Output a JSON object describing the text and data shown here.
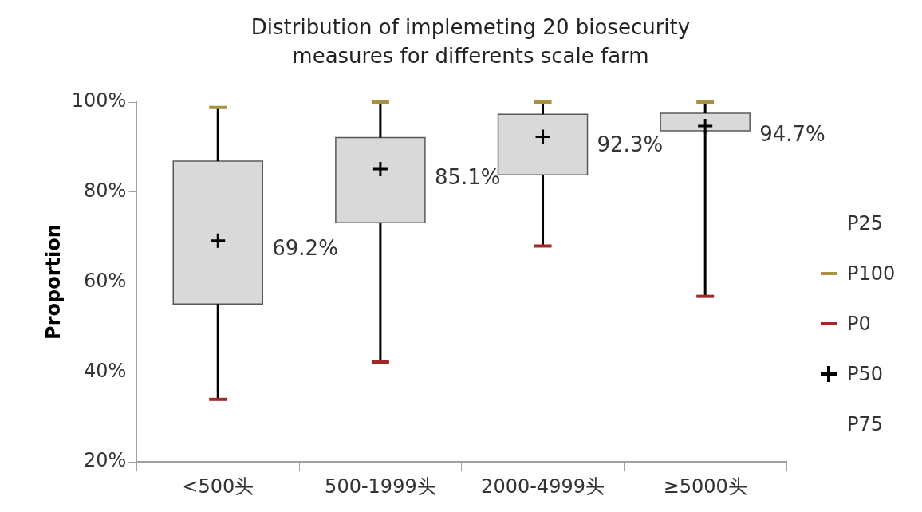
{
  "chart_data": {
    "type": "box",
    "title": "Distribution of implemeting 20 biosecurity measures for differents scale farm",
    "ylabel": "Proportion",
    "categories": [
      "<500头",
      "500-1999头",
      "2000-4999头",
      "≥5000头"
    ],
    "boxes": [
      {
        "low": 33.9,
        "q1": 55.1,
        "median": 69.2,
        "q3": 86.9,
        "high": 98.8
      },
      {
        "low": 42.2,
        "q1": 73.2,
        "median": 85.1,
        "q3": 92.1,
        "high": 100
      },
      {
        "low": 68.0,
        "q1": 83.8,
        "median": 92.3,
        "q3": 97.3,
        "high": 100
      },
      {
        "low": 56.8,
        "q1": 93.6,
        "median": 94.7,
        "q3": 97.5,
        "high": 100
      }
    ],
    "color": "#d9d9d9",
    "value_labels": [
      "69.2%",
      "85.1%",
      "92.3%",
      "94.7%"
    ],
    "annotations": [
      "P25",
      "P100",
      "P0",
      "P50",
      "P75"
    ],
    "ylim": [
      20,
      100
    ],
    "yticks": [
      {
        "value": 20,
        "label": "20%"
      },
      {
        "value": 40,
        "label": "40%"
      },
      {
        "value": 60,
        "label": "60%"
      },
      {
        "value": 80,
        "label": "80%"
      },
      {
        "value": 100,
        "label": "100%"
      }
    ],
    "grid": false
  }
}
